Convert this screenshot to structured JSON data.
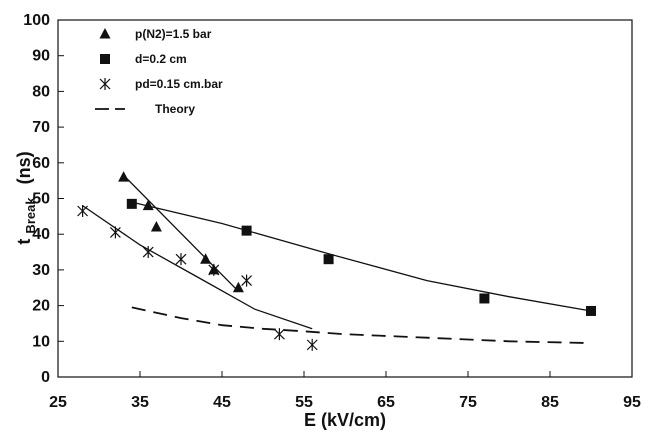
{
  "chart_data": {
    "type": "scatter",
    "xlabel": "E  (kV/cm)",
    "ylabel_main": "t",
    "ylabel_sub": "Break",
    "ylabel_unit": "(ns)",
    "xlim": [
      25,
      95
    ],
    "ylim": [
      0,
      100
    ],
    "xticks": [
      25,
      35,
      45,
      55,
      65,
      75,
      85,
      95
    ],
    "yticks": [
      0,
      10,
      20,
      30,
      40,
      50,
      60,
      70,
      80,
      90,
      100
    ],
    "grid": false,
    "legend_position": "top-left",
    "series": [
      {
        "name": "p(N2)=1.5 bar",
        "marker": "triangle",
        "points": [
          [
            33,
            56
          ],
          [
            36,
            48
          ],
          [
            37,
            42
          ],
          [
            43,
            33
          ],
          [
            44,
            30
          ],
          [
            47,
            25
          ]
        ],
        "fit": [
          [
            33,
            56.5
          ],
          [
            47,
            24
          ]
        ]
      },
      {
        "name": "d=0.2 cm",
        "marker": "square",
        "points": [
          [
            34,
            48.5
          ],
          [
            48,
            41
          ],
          [
            58,
            33
          ],
          [
            77,
            22
          ],
          [
            90,
            18.5
          ]
        ],
        "fit": [
          [
            34,
            49
          ],
          [
            45,
            43
          ],
          [
            58,
            34.5
          ],
          [
            70,
            27
          ],
          [
            80,
            22.5
          ],
          [
            90,
            18.5
          ]
        ]
      },
      {
        "name": "pd=0.15 cm.bar",
        "marker": "asterisk",
        "points": [
          [
            28,
            46.5
          ],
          [
            32,
            40.5
          ],
          [
            36,
            35
          ],
          [
            40,
            33
          ],
          [
            44,
            30
          ],
          [
            48,
            27
          ],
          [
            52,
            12
          ],
          [
            56,
            9
          ]
        ],
        "fit": [
          [
            28,
            48
          ],
          [
            35,
            37
          ],
          [
            42,
            28
          ],
          [
            49,
            19
          ],
          [
            56,
            13.5
          ]
        ]
      },
      {
        "name": "Theory",
        "marker": "none",
        "style": "dashed",
        "points": [],
        "fit": [
          [
            34,
            19.5
          ],
          [
            40,
            16.5
          ],
          [
            45,
            14.5
          ],
          [
            50,
            13.5
          ],
          [
            55,
            12.8
          ],
          [
            60,
            12
          ],
          [
            70,
            11
          ],
          [
            80,
            10
          ],
          [
            90,
            9.5
          ]
        ]
      }
    ]
  }
}
